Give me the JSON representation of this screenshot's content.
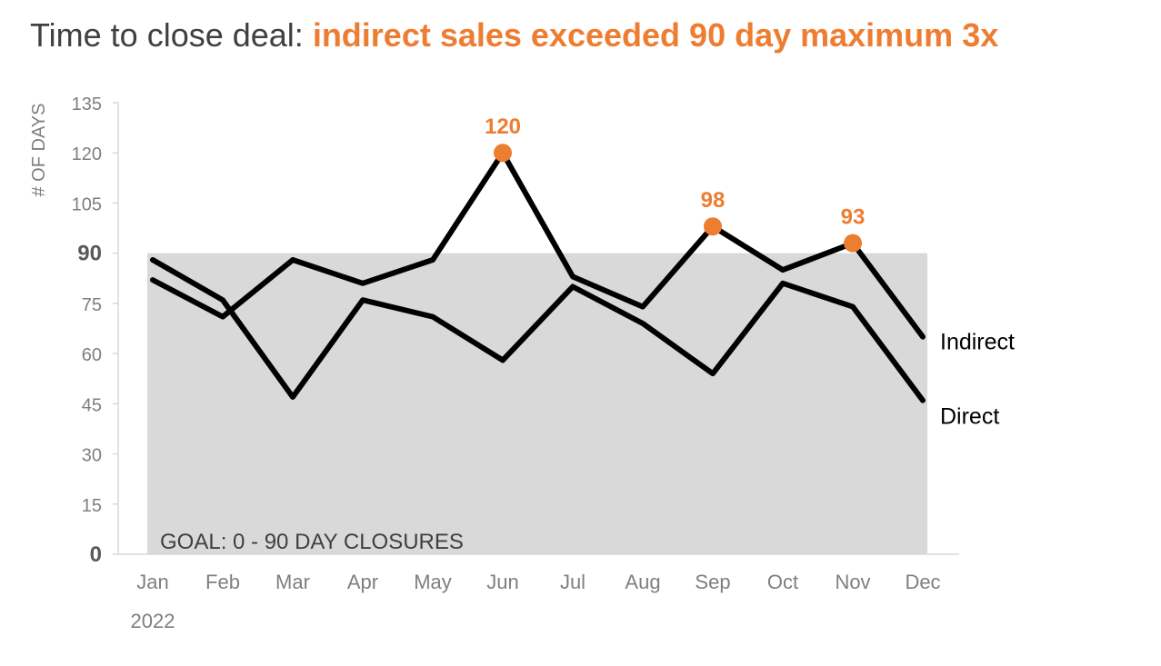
{
  "title": {
    "plain": "Time to close deal: ",
    "highlight": "indirect sales exceeded 90 day maximum 3x"
  },
  "colors": {
    "title_text": "#404040",
    "accent": "#ed7d31",
    "line": "#000000",
    "goal_band": "#d9d9d9",
    "axis_text": "#7f7f7f",
    "axis_line": "#d9d9d9"
  },
  "chart_data": {
    "type": "line",
    "ylabel": "# OF DAYS",
    "ylim": [
      0,
      135
    ],
    "yticks": [
      0,
      15,
      30,
      45,
      60,
      75,
      90,
      105,
      120,
      135
    ],
    "bold_yticks": [
      0,
      90
    ],
    "categories": [
      "Jan",
      "Feb",
      "Mar",
      "Apr",
      "May",
      "Jun",
      "Jul",
      "Aug",
      "Sep",
      "Oct",
      "Nov",
      "Dec"
    ],
    "year_label": "2022",
    "grid": false,
    "goal_band": {
      "from": 0,
      "to": 90,
      "label": "GOAL: 0 - 90 DAY CLOSURES"
    },
    "series": [
      {
        "name": "Indirect",
        "values": [
          82,
          71,
          88,
          81,
          88,
          120,
          83,
          74,
          98,
          85,
          93,
          65
        ]
      },
      {
        "name": "Direct",
        "values": [
          88,
          76,
          47,
          76,
          71,
          58,
          80,
          69,
          54,
          81,
          74,
          46
        ]
      }
    ],
    "highlights": [
      {
        "series": "Indirect",
        "category": "Jun",
        "value": 120,
        "label": "120"
      },
      {
        "series": "Indirect",
        "category": "Sep",
        "value": 98,
        "label": "98"
      },
      {
        "series": "Indirect",
        "category": "Nov",
        "value": 93,
        "label": "93"
      }
    ]
  }
}
